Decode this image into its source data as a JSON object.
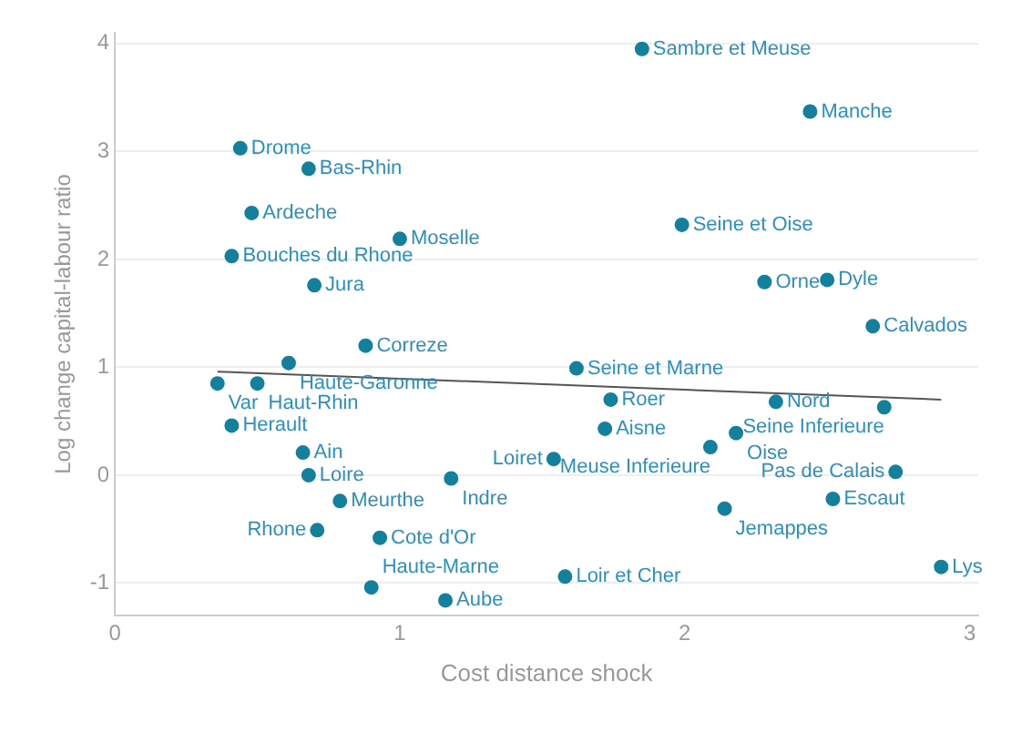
{
  "chart_data": {
    "type": "scatter",
    "xlabel": "Cost distance shock",
    "ylabel": "Log change capital-labour ratio",
    "xlim": [
      0,
      3.03
    ],
    "ylim": [
      -1.3,
      4.1
    ],
    "xticks": [
      0,
      1,
      2,
      3
    ],
    "yticks": [
      -1,
      0,
      1,
      2,
      3,
      4
    ],
    "grid": "y",
    "legend": false,
    "series": [
      {
        "color": "#13809e",
        "marker": "circle",
        "x": [
          1.85,
          2.44,
          0.44,
          0.68,
          0.48,
          1.0,
          1.99,
          0.41,
          0.7,
          2.28,
          2.5,
          2.66,
          0.88,
          0.61,
          0.36,
          0.5,
          1.62,
          1.74,
          2.32,
          2.7,
          1.72,
          2.18,
          2.09,
          1.54,
          2.74,
          0.41,
          0.66,
          0.68,
          1.18,
          0.79,
          2.52,
          2.14,
          0.71,
          0.93,
          1.58,
          2.9,
          0.9,
          1.16
        ],
        "values": [
          3.95,
          3.37,
          3.03,
          2.84,
          2.43,
          2.19,
          2.32,
          2.03,
          1.76,
          1.79,
          1.81,
          1.38,
          1.2,
          1.04,
          0.85,
          0.85,
          0.99,
          0.7,
          0.68,
          0.63,
          0.43,
          0.39,
          0.26,
          0.15,
          0.03,
          0.46,
          0.21,
          0.0,
          -0.03,
          -0.24,
          -0.22,
          -0.31,
          -0.51,
          -0.58,
          -0.94,
          -0.85,
          -1.04,
          -1.16
        ]
      },
      {
        "type": "line",
        "marker": "none",
        "color": "#555555",
        "x": [
          0.36,
          2.9
        ],
        "values": [
          0.96,
          0.7
        ]
      }
    ],
    "annotations": [
      {
        "text": "Sambre et Meuse",
        "x": 1.85,
        "y": 3.95
      },
      {
        "text": "Manche",
        "x": 2.44,
        "y": 3.37
      },
      {
        "text": "Drome",
        "x": 0.44,
        "y": 3.03
      },
      {
        "text": "Bas-Rhin",
        "x": 0.68,
        "y": 2.84
      },
      {
        "text": "Ardeche",
        "x": 0.48,
        "y": 2.43
      },
      {
        "text": "Moselle",
        "x": 1.0,
        "y": 2.19
      },
      {
        "text": "Seine et Oise",
        "x": 1.99,
        "y": 2.32
      },
      {
        "text": "Bouches du Rhone",
        "x": 0.41,
        "y": 2.03
      },
      {
        "text": "Jura",
        "x": 0.7,
        "y": 1.76
      },
      {
        "text": "Orne",
        "x": 2.28,
        "y": 1.79
      },
      {
        "text": "Dyle",
        "x": 2.5,
        "y": 1.81
      },
      {
        "text": "Calvados",
        "x": 2.66,
        "y": 1.38
      },
      {
        "text": "Correze",
        "x": 0.88,
        "y": 1.2
      },
      {
        "text": "Haute-Garonne",
        "x": 0.61,
        "y": 1.04
      },
      {
        "text": "Var",
        "x": 0.36,
        "y": 0.85
      },
      {
        "text": "Haut-Rhin",
        "x": 0.5,
        "y": 0.85
      },
      {
        "text": "Seine et Marne",
        "x": 1.62,
        "y": 0.99
      },
      {
        "text": "Roer",
        "x": 1.74,
        "y": 0.7
      },
      {
        "text": "Nord",
        "x": 2.32,
        "y": 0.68
      },
      {
        "text": "Seine Inferieure",
        "x": 2.7,
        "y": 0.63
      },
      {
        "text": "Aisne",
        "x": 1.72,
        "y": 0.43
      },
      {
        "text": "Oise",
        "x": 2.18,
        "y": 0.39
      },
      {
        "text": "Meuse Inferieure",
        "x": 2.09,
        "y": 0.26
      },
      {
        "text": "Loiret",
        "x": 1.54,
        "y": 0.15
      },
      {
        "text": "Pas de Calais",
        "x": 2.74,
        "y": 0.03
      },
      {
        "text": "Herault",
        "x": 0.41,
        "y": 0.46
      },
      {
        "text": "Ain",
        "x": 0.66,
        "y": 0.21
      },
      {
        "text": "Loire",
        "x": 0.68,
        "y": 0.0
      },
      {
        "text": "Indre",
        "x": 1.18,
        "y": -0.03
      },
      {
        "text": "Meurthe",
        "x": 0.79,
        "y": -0.24
      },
      {
        "text": "Escaut",
        "x": 2.52,
        "y": -0.22
      },
      {
        "text": "Jemappes",
        "x": 2.14,
        "y": -0.31
      },
      {
        "text": "Rhone",
        "x": 0.71,
        "y": -0.51
      },
      {
        "text": "Cote d'Or",
        "x": 0.93,
        "y": -0.58
      },
      {
        "text": "Loir et Cher",
        "x": 1.58,
        "y": -0.94
      },
      {
        "text": "Lys",
        "x": 2.9,
        "y": -0.85
      },
      {
        "text": "Haute-Marne",
        "x": 0.9,
        "y": -1.04
      },
      {
        "text": "Aube",
        "x": 1.16,
        "y": -1.16
      }
    ]
  }
}
